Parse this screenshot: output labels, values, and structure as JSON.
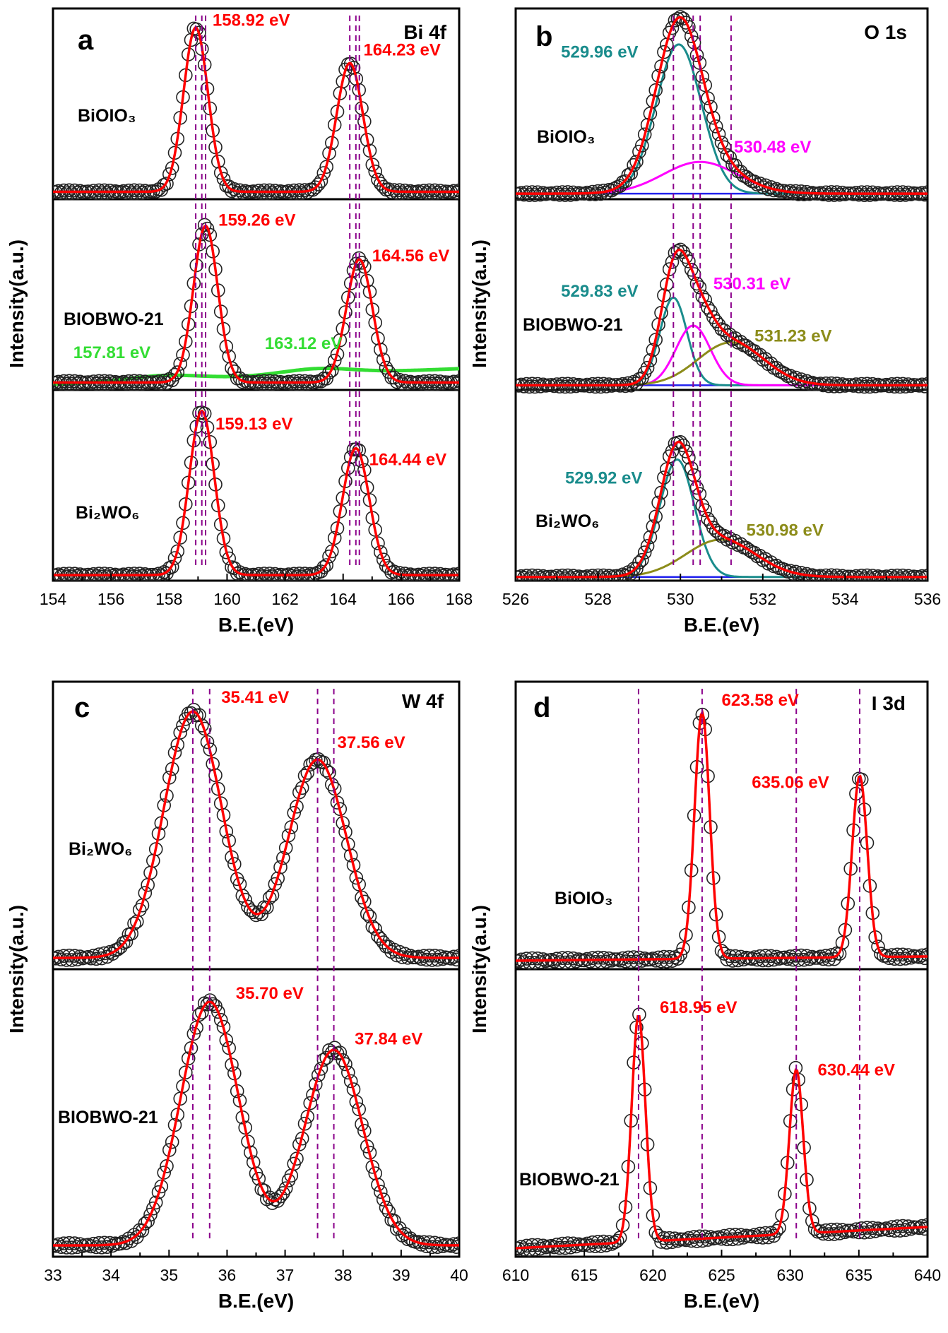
{
  "chart_data": [
    {
      "type": "line",
      "panel": "a",
      "element": "Bi 4f",
      "xlabel": "B.E.(eV)",
      "ylabel": "Intensity(a.u.)",
      "xlim": [
        154,
        168
      ],
      "xticks": [
        "154",
        "156",
        "158",
        "160",
        "162",
        "164",
        "166",
        "168"
      ],
      "subplots": [
        {
          "sample": "BiOIO₃",
          "baseline": 0.04,
          "slope": 0.0,
          "peaks": [
            {
              "center": 158.92,
              "height": 0.88,
              "width": 0.42,
              "color": "#ff0000",
              "fit": true
            },
            {
              "center": 164.23,
              "height": 0.69,
              "width": 0.45,
              "color": "#ff0000",
              "fit": true
            }
          ],
          "labels": [
            {
              "text": "158.92 eV",
              "x": 159.5,
              "y": 0.93,
              "color": "#ff0000"
            },
            {
              "text": "164.23 eV",
              "x": 164.7,
              "y": 0.77,
              "color": "#ff0000"
            }
          ]
        },
        {
          "sample": "BIOBWO-21",
          "baseline": 0.04,
          "slope": 0.0,
          "peaks": [
            {
              "center": 159.26,
              "height": 0.84,
              "width": 0.42,
              "color": "#ff0000",
              "fit": true
            },
            {
              "center": 164.56,
              "height": 0.66,
              "width": 0.45,
              "color": "#ff0000",
              "fit": true
            },
            {
              "center": 157.81,
              "height": 0.025,
              "width": 1.2,
              "color": "#33dd33",
              "fit": false
            },
            {
              "center": 163.12,
              "height": 0.03,
              "width": 1.2,
              "color": "#33dd33",
              "fit": false
            }
          ],
          "labels": [
            {
              "text": "159.26 eV",
              "x": 159.7,
              "y": 0.88,
              "color": "#ff0000"
            },
            {
              "text": "164.56 eV",
              "x": 165.0,
              "y": 0.69,
              "color": "#ff0000"
            },
            {
              "text": "157.81 eV",
              "x": 154.7,
              "y": 0.17,
              "color": "#33dd33"
            },
            {
              "text": "163.12 eV",
              "x": 161.3,
              "y": 0.22,
              "color": "#33dd33"
            }
          ]
        },
        {
          "sample": "Bi₂WO₆",
          "baseline": 0.03,
          "slope": 0.0,
          "peaks": [
            {
              "center": 159.13,
              "height": 0.88,
              "width": 0.43,
              "color": "#ff0000",
              "fit": true
            },
            {
              "center": 164.44,
              "height": 0.68,
              "width": 0.46,
              "color": "#ff0000",
              "fit": true
            }
          ],
          "labels": [
            {
              "text": "159.13 eV",
              "x": 159.6,
              "y": 0.81,
              "color": "#ff0000"
            },
            {
              "text": "164.44 eV",
              "x": 164.9,
              "y": 0.62,
              "color": "#ff0000"
            }
          ]
        }
      ],
      "dashed_lines": [
        158.92,
        159.13,
        159.26,
        164.23,
        164.44,
        164.56
      ]
    },
    {
      "type": "line",
      "panel": "b",
      "element": "O 1s",
      "xlabel": "B.E.(eV)",
      "ylabel": "Intensity(a.u.)",
      "xlim": [
        526,
        536
      ],
      "xticks": [
        "526",
        "528",
        "530",
        "532",
        "534",
        "536"
      ],
      "subplots": [
        {
          "sample": "BiOIO₃",
          "baseline": 0.03,
          "slope": 0.0,
          "peaks": [
            {
              "center": 529.96,
              "height": 0.8,
              "width": 0.55,
              "color": "#1a8c8c",
              "fit": true
            },
            {
              "center": 530.48,
              "height": 0.17,
              "width": 0.9,
              "color": "#ff00ff",
              "fit": true
            }
          ],
          "labels": [
            {
              "text": "529.96 eV",
              "x": 527.1,
              "y": 0.76,
              "color": "#1a8c8c"
            },
            {
              "text": "530.48 eV",
              "x": 531.3,
              "y": 0.25,
              "color": "#ff00ff"
            }
          ]
        },
        {
          "sample": "BIOBWO-21",
          "baseline": 0.025,
          "slope": 0.0,
          "peaks": [
            {
              "center": 529.83,
              "height": 0.47,
              "width": 0.33,
              "color": "#1a8c8c",
              "fit": true
            },
            {
              "center": 530.31,
              "height": 0.32,
              "width": 0.42,
              "color": "#ff00ff",
              "fit": true
            },
            {
              "center": 531.23,
              "height": 0.23,
              "width": 0.8,
              "color": "#8c8c1a",
              "fit": true
            }
          ],
          "labels": [
            {
              "text": "529.83 eV",
              "x": 527.1,
              "y": 0.5,
              "color": "#1a8c8c"
            },
            {
              "text": "530.31 eV",
              "x": 530.8,
              "y": 0.54,
              "color": "#ff00ff"
            },
            {
              "text": "531.23 eV",
              "x": 531.8,
              "y": 0.26,
              "color": "#8c8c1a"
            }
          ]
        },
        {
          "sample": "Bi₂WO₆",
          "baseline": 0.02,
          "slope": 0.0,
          "peaks": [
            {
              "center": 529.92,
              "height": 0.63,
              "width": 0.42,
              "color": "#1a8c8c",
              "fit": true
            },
            {
              "center": 530.98,
              "height": 0.2,
              "width": 0.85,
              "color": "#8c8c1a",
              "fit": true
            }
          ],
          "labels": [
            {
              "text": "529.92 eV",
              "x": 527.2,
              "y": 0.52,
              "color": "#1a8c8c"
            },
            {
              "text": "530.98 eV",
              "x": 531.6,
              "y": 0.24,
              "color": "#8c8c1a"
            }
          ]
        }
      ],
      "dashed_lines": [
        529.83,
        530.31,
        530.48,
        531.23
      ]
    },
    {
      "type": "line",
      "panel": "c",
      "element": "W 4f",
      "xlabel": "B.E.(eV)",
      "ylabel": "Intensity(a.u.)",
      "xlim": [
        33,
        40
      ],
      "xticks": [
        "33",
        "34",
        "35",
        "36",
        "37",
        "38",
        "39",
        "40"
      ],
      "subplots": [
        {
          "sample": "Bi₂WO₆",
          "baseline": 0.04,
          "slope": 0.0,
          "peaks": [
            {
              "center": 35.41,
              "height": 0.87,
              "width": 0.5,
              "color": "#ff0000",
              "fit": true
            },
            {
              "center": 37.56,
              "height": 0.7,
              "width": 0.5,
              "color": "#ff0000",
              "fit": true
            }
          ],
          "labels": [
            {
              "text": "35.41 eV",
              "x": 35.9,
              "y": 0.94,
              "color": "#ff0000"
            },
            {
              "text": "37.56 eV",
              "x": 37.9,
              "y": 0.78,
              "color": "#ff0000"
            }
          ]
        },
        {
          "sample": "BIOBWO-21",
          "baseline": 0.04,
          "slope": 0.0,
          "peaks": [
            {
              "center": 35.7,
              "height": 0.86,
              "width": 0.5,
              "color": "#ff0000",
              "fit": true
            },
            {
              "center": 37.84,
              "height": 0.69,
              "width": 0.5,
              "color": "#ff0000",
              "fit": true
            }
          ],
          "labels": [
            {
              "text": "35.70 eV",
              "x": 36.15,
              "y": 0.91,
              "color": "#ff0000"
            },
            {
              "text": "37.84 eV",
              "x": 38.2,
              "y": 0.75,
              "color": "#ff0000"
            }
          ]
        }
      ],
      "dashed_lines": [
        35.41,
        35.7,
        37.56,
        37.84
      ]
    },
    {
      "type": "line",
      "panel": "d",
      "element": "I 3d",
      "xlabel": "B.E.(eV)",
      "ylabel": "Intensity(a.u.)",
      "xlim": [
        610,
        640
      ],
      "xticks": [
        "610",
        "615",
        "620",
        "625",
        "630",
        "635",
        "640"
      ],
      "subplots": [
        {
          "sample": "BiOIO₃",
          "baseline": 0.03,
          "slope": 0.0005,
          "peaks": [
            {
              "center": 623.58,
              "height": 0.87,
              "width": 0.55,
              "color": "#ff0000",
              "fit": true
            },
            {
              "center": 635.06,
              "height": 0.64,
              "width": 0.55,
              "color": "#ff0000",
              "fit": true
            }
          ],
          "labels": [
            {
              "text": "623.58 eV",
              "x": 625.0,
              "y": 0.93,
              "color": "#ff0000"
            },
            {
              "text": "635.06 eV",
              "x": 627.2,
              "y": 0.64,
              "color": "#ff0000"
            }
          ]
        },
        {
          "sample": "BIOBWO-21",
          "baseline": 0.03,
          "slope": 0.0025,
          "peaks": [
            {
              "center": 618.95,
              "height": 0.8,
              "width": 0.5,
              "color": "#ff0000",
              "fit": true
            },
            {
              "center": 630.44,
              "height": 0.58,
              "width": 0.5,
              "color": "#ff0000",
              "fit": true
            }
          ],
          "labels": [
            {
              "text": "618.95 eV",
              "x": 620.5,
              "y": 0.86,
              "color": "#ff0000"
            },
            {
              "text": "630.44 eV",
              "x": 632.0,
              "y": 0.64,
              "color": "#ff0000"
            }
          ]
        }
      ],
      "dashed_lines": [
        618.95,
        623.58,
        630.44,
        635.06
      ]
    }
  ]
}
